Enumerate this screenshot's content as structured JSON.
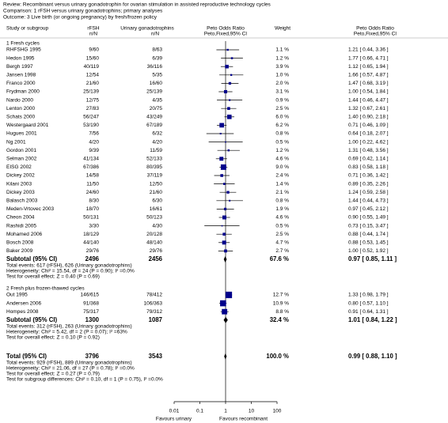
{
  "chart_data": {
    "type": "forest",
    "header": {
      "review": "Review:  Recombinant versus urinary gonadotrophin for ovarian stimulation in assisted reproductive technology cycles",
      "comparison": "Comparison:  1 rFSH versus urinary gonadotrophins; primary analyses",
      "outcome": "Outcome:  3 Live birth (or ongoing pregnancy) by fresh/frozen policy"
    },
    "columns": {
      "study": "Study or subgroup",
      "exp": [
        "rFSH",
        "n/N"
      ],
      "ctrl": [
        "Urinary gonadotrophins",
        "n/N"
      ],
      "plot": [
        "Peto Odds Ratio",
        "Peto,Fixed,95% CI"
      ],
      "weight": "Weight",
      "effect": [
        "Peto Odds Ratio",
        "Peto,Fixed,95% CI"
      ]
    },
    "square_color": "#00008b",
    "log_scale": true,
    "xlim": [
      0.01,
      100
    ],
    "xticks": [
      0.01,
      0.1,
      1,
      10,
      100
    ],
    "favours": [
      "Favours urinary",
      "Favours recombinant"
    ],
    "groups": [
      {
        "name": "1 Fresh cycles",
        "studies": [
          {
            "name": "RHFSHG 1995",
            "exp": "9/60",
            "ctrl": "8/63",
            "weight": 1.1,
            "weight_label": "1.1 %",
            "or": 1.21,
            "lo": 0.44,
            "hi": 3.36,
            "or_label": "1.21 [ 0.44, 3.36 ]"
          },
          {
            "name": "Hedon 1995",
            "exp": "15/60",
            "ctrl": "6/39",
            "weight": 1.2,
            "weight_label": "1.2 %",
            "or": 1.77,
            "lo": 0.66,
            "hi": 4.71,
            "or_label": "1.77 [ 0.66, 4.71 ]"
          },
          {
            "name": "Bergh 1997",
            "exp": "40/119",
            "ctrl": "36/116",
            "weight": 3.9,
            "weight_label": "3.9 %",
            "or": 1.12,
            "lo": 0.65,
            "hi": 1.94,
            "or_label": "1.12 [ 0.65, 1.94 ]"
          },
          {
            "name": "Jansen 1998",
            "exp": "12/54",
            "ctrl": "5/35",
            "weight": 1.0,
            "weight_label": "1.0 %",
            "or": 1.66,
            "lo": 0.57,
            "hi": 4.87,
            "or_label": "1.66 [ 0.57, 4.87 ]"
          },
          {
            "name": "Franco 2000",
            "exp": "21/60",
            "ctrl": "16/60",
            "weight": 2.0,
            "weight_label": "2.0 %",
            "or": 1.47,
            "lo": 0.68,
            "hi": 3.19,
            "or_label": "1.47 [ 0.68, 3.19 ]"
          },
          {
            "name": "Frydman 2000",
            "exp": "25/139",
            "ctrl": "25/139",
            "weight": 3.1,
            "weight_label": "3.1 %",
            "or": 1.0,
            "lo": 0.54,
            "hi": 1.84,
            "or_label": "1.00 [ 0.54, 1.84 ]"
          },
          {
            "name": "Nardo 2000",
            "exp": "12/75",
            "ctrl": "4/35",
            "weight": 0.9,
            "weight_label": "0.9 %",
            "or": 1.44,
            "lo": 0.46,
            "hi": 4.47,
            "or_label": "1.44 [ 0.46, 4.47 ]"
          },
          {
            "name": "Lenton 2000",
            "exp": "27/83",
            "ctrl": "20/75",
            "weight": 2.5,
            "weight_label": "2.5 %",
            "or": 1.32,
            "lo": 0.67,
            "hi": 2.61,
            "or_label": "1.32 [ 0.67, 2.61 ]"
          },
          {
            "name": "Schats 2000",
            "exp": "56/247",
            "ctrl": "43/249",
            "weight": 6.0,
            "weight_label": "6.0 %",
            "or": 1.4,
            "lo": 0.9,
            "hi": 2.18,
            "or_label": "1.40 [ 0.90, 2.18 ]"
          },
          {
            "name": "Westergaard 2001",
            "exp": "53/190",
            "ctrl": "67/189",
            "weight": 6.2,
            "weight_label": "6.2 %",
            "or": 0.71,
            "lo": 0.46,
            "hi": 1.09,
            "or_label": "0.71 [ 0.46, 1.09 ]"
          },
          {
            "name": "Hugues 2001",
            "exp": "7/56",
            "ctrl": "6/32",
            "weight": 0.8,
            "weight_label": "0.8 %",
            "or": 0.64,
            "lo": 0.18,
            "hi": 2.07,
            "or_label": "0.64 [ 0.18, 2.07 ]"
          },
          {
            "name": "Ng 2001",
            "exp": "4/20",
            "ctrl": "4/20",
            "weight": 0.5,
            "weight_label": "0.5 %",
            "or": 1.0,
            "lo": 0.22,
            "hi": 4.62,
            "or_label": "1.00 [ 0.22, 4.62 ]"
          },
          {
            "name": "Gordon 2001",
            "exp": "9/39",
            "ctrl": "11/59",
            "weight": 1.2,
            "weight_label": "1.2 %",
            "or": 1.31,
            "lo": 0.48,
            "hi": 3.56,
            "or_label": "1.31 [ 0.48, 3.56 ]"
          },
          {
            "name": "Selman 2002",
            "exp": "41/134",
            "ctrl": "52/133",
            "weight": 4.6,
            "weight_label": "4.6 %",
            "or": 0.69,
            "lo": 0.42,
            "hi": 1.14,
            "or_label": "0.69 [ 0.42, 1.14 ]"
          },
          {
            "name": "EISG 2002",
            "exp": "67/386",
            "ctrl": "80/395",
            "weight": 9.0,
            "weight_label": "9.0 %",
            "or": 0.83,
            "lo": 0.58,
            "hi": 1.18,
            "or_label": "0.83 [ 0.58, 1.18 ]"
          },
          {
            "name": "Dickey 2002",
            "exp": "14/58",
            "ctrl": "37/119",
            "weight": 2.4,
            "weight_label": "2.4 %",
            "or": 0.71,
            "lo": 0.36,
            "hi": 1.42,
            "or_label": "0.71 [ 0.36, 1.42 ]"
          },
          {
            "name": "Kilani 2003",
            "exp": "11/50",
            "ctrl": "12/50",
            "weight": 1.4,
            "weight_label": "1.4 %",
            "or": 0.89,
            "lo": 0.35,
            "hi": 2.26,
            "or_label": "0.89 [ 0.35, 2.26 ]"
          },
          {
            "name": "Dickey 2003",
            "exp": "24/60",
            "ctrl": "21/60",
            "weight": 2.1,
            "weight_label": "2.1 %",
            "or": 1.24,
            "lo": 0.59,
            "hi": 2.58,
            "or_label": "1.24 [ 0.59, 2.58 ]"
          },
          {
            "name": "Balasch 2003",
            "exp": "8/30",
            "ctrl": "6/30",
            "weight": 0.8,
            "weight_label": "0.8 %",
            "or": 1.44,
            "lo": 0.44,
            "hi": 4.73,
            "or_label": "1.44 [ 0.44, 4.73 ]"
          },
          {
            "name": "Meden-Vrtovec 2003",
            "exp": "18/70",
            "ctrl": "16/61",
            "weight": 1.9,
            "weight_label": "1.9 %",
            "or": 0.97,
            "lo": 0.45,
            "hi": 2.12,
            "or_label": "0.97 [ 0.45, 2.12 ]"
          },
          {
            "name": "Cheon 2004",
            "exp": "50/131",
            "ctrl": "50/123",
            "weight": 4.6,
            "weight_label": "4.6 %",
            "or": 0.9,
            "lo": 0.55,
            "hi": 1.49,
            "or_label": "0.90 [ 0.55, 1.49 ]"
          },
          {
            "name": "Rashidi 2005",
            "exp": "3/30",
            "ctrl": "4/30",
            "weight": 0.5,
            "weight_label": "0.5 %",
            "or": 0.73,
            "lo": 0.15,
            "hi": 3.47,
            "or_label": "0.73 [ 0.15, 3.47 ]"
          },
          {
            "name": "Mohamed 2006",
            "exp": "18/129",
            "ctrl": "20/128",
            "weight": 2.5,
            "weight_label": "2.5 %",
            "or": 0.88,
            "lo": 0.44,
            "hi": 1.74,
            "or_label": "0.88 [ 0.44, 1.74 ]"
          },
          {
            "name": "Bosch 2008",
            "exp": "44/140",
            "ctrl": "48/140",
            "weight": 4.7,
            "weight_label": "4.7 %",
            "or": 0.88,
            "lo": 0.53,
            "hi": 1.45,
            "or_label": "0.88 [ 0.53, 1.45 ]"
          },
          {
            "name": "Baker 2009",
            "exp": "29/76",
            "ctrl": "29/76",
            "weight": 2.7,
            "weight_label": "2.7 %",
            "or": 1.0,
            "lo": 0.52,
            "hi": 1.92,
            "or_label": "1.00 [ 0.52, 1.92 ]"
          }
        ],
        "subtotal": {
          "label": "Subtotal (95% CI)",
          "exp": 2496,
          "ctrl": 2456,
          "weight_label": "67.6 %",
          "or": 0.97,
          "lo": 0.85,
          "hi": 1.11,
          "or_label": "0.97 [ 0.85, 1.11 ]"
        },
        "notes": [
          "Total events: 617 (rFSH), 626 (Urinary gonadotrophins)",
          "Heterogeneity: Chi² = 15.54, df = 24 (P = 0.90); I² =0.0%",
          "Test for overall effect: Z = 0.40 (P = 0.69)"
        ]
      },
      {
        "name": "2 Fresh plus frozen-thawed cycles",
        "studies": [
          {
            "name": "Out 1995",
            "exp": "146/615",
            "ctrl": "78/412",
            "weight": 12.7,
            "weight_label": "12.7 %",
            "or": 1.33,
            "lo": 0.98,
            "hi": 1.79,
            "or_label": "1.33 [ 0.98, 1.79 ]"
          },
          {
            "name": "Andersen 2006",
            "exp": "91/368",
            "ctrl": "106/363",
            "weight": 10.9,
            "weight_label": "10.9 %",
            "or": 0.8,
            "lo": 0.57,
            "hi": 1.1,
            "or_label": "0.80 [ 0.57, 1.10 ]"
          },
          {
            "name": "Hompes 2008",
            "exp": "75/317",
            "ctrl": "79/312",
            "weight": 8.8,
            "weight_label": "8.8 %",
            "or": 0.91,
            "lo": 0.64,
            "hi": 1.31,
            "or_label": "0.91 [ 0.64, 1.31 ]"
          }
        ],
        "subtotal": {
          "label": "Subtotal (95% CI)",
          "exp": 1300,
          "ctrl": 1087,
          "weight_label": "32.4 %",
          "or": 1.01,
          "lo": 0.84,
          "hi": 1.22,
          "or_label": "1.01 [ 0.84, 1.22 ]"
        },
        "notes": [
          "Total events: 312 (rFSH), 263 (Urinary gonadotrophins)",
          "Heterogeneity: Chi² = 5.42, df = 2 (P = 0.07); I² =63%",
          "Test for overall effect: Z = 0.10 (P = 0.92)"
        ]
      }
    ],
    "total": {
      "label": "Total (95% CI)",
      "exp": 3796,
      "ctrl": 3543,
      "weight_label": "100.0 %",
      "or": 0.99,
      "lo": 0.88,
      "hi": 1.1,
      "or_label": "0.99 [ 0.88, 1.10 ]",
      "notes": [
        "Total events: 929 (rFSH), 889 (Urinary gonadotrophins)",
        "Heterogeneity: Chi² = 21.06, df = 27 (P = 0.78); I² =0.0%",
        "Test for overall effect: Z = 0.27 (P = 0.79)",
        "Test for subgroup differences: Chi² = 0.10, df = 1 (P = 0.75), I² =0.0%"
      ]
    }
  }
}
